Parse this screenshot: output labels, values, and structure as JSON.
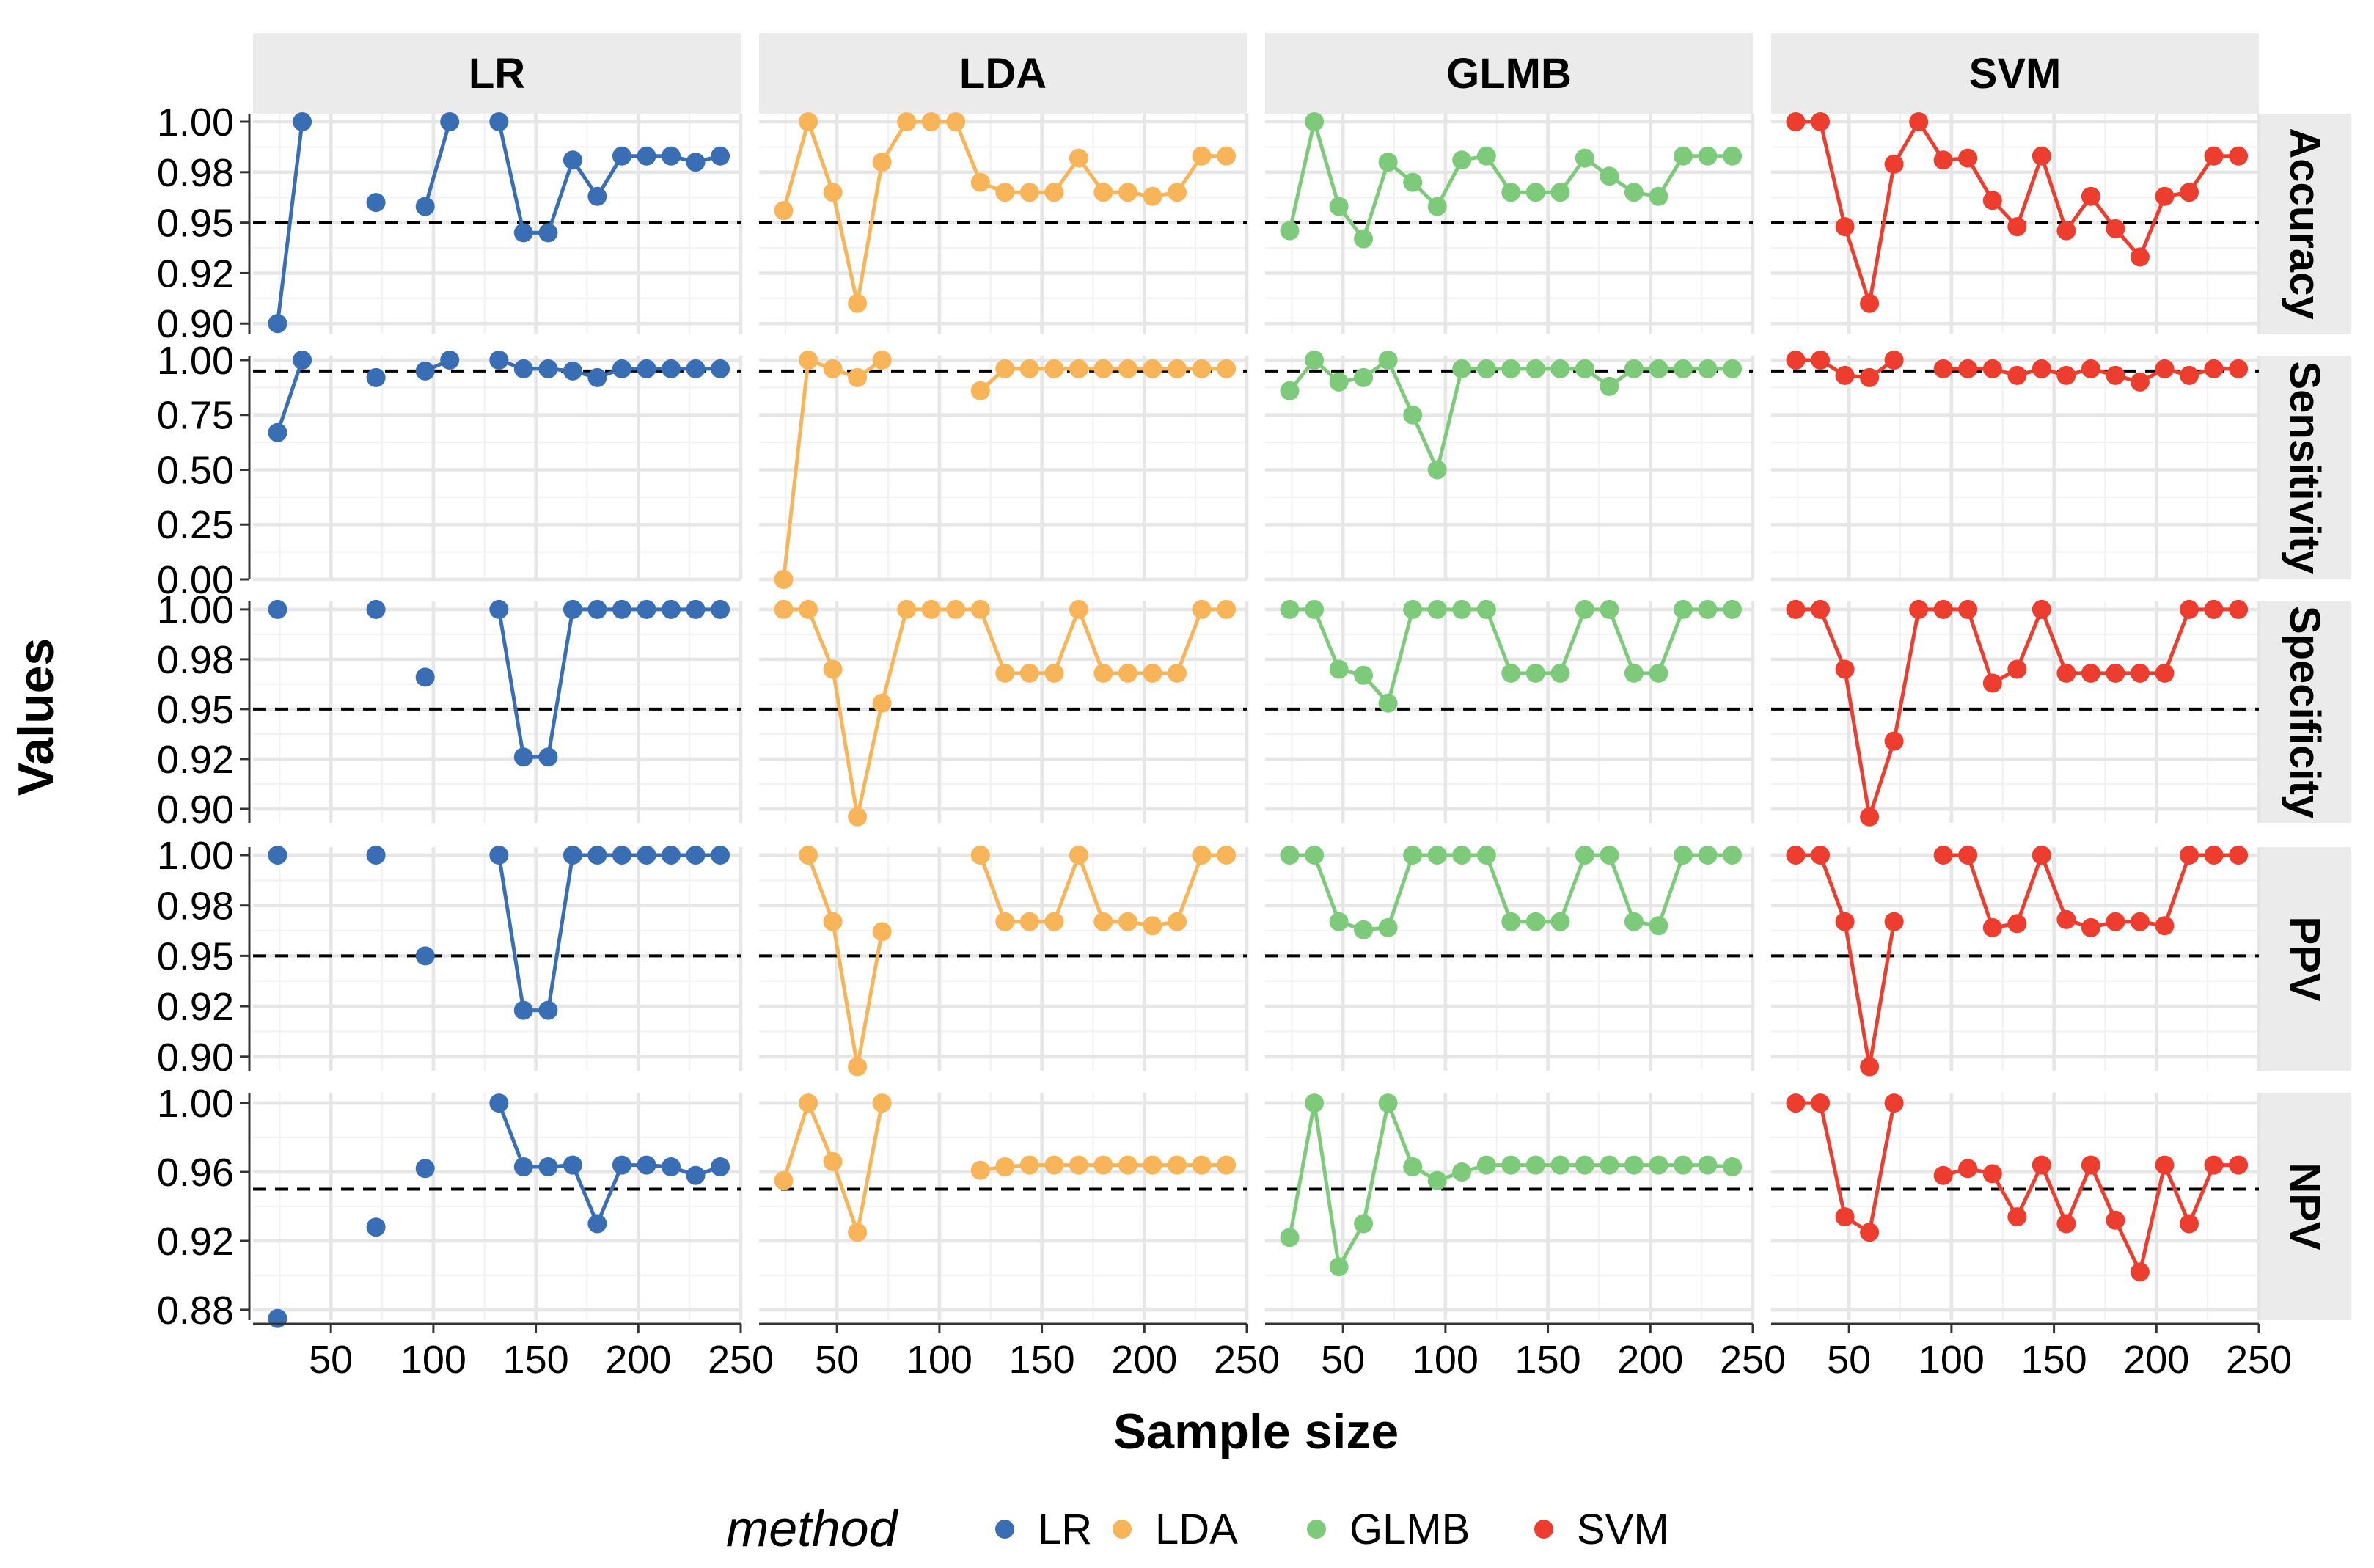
{
  "chart_data": {
    "type": "line",
    "xlabel": "Sample size",
    "ylabel": "Values",
    "x_ticks": [
      50,
      100,
      150,
      200,
      250
    ],
    "xlim": [
      12,
      250
    ],
    "reference_line": 0.95,
    "grid": true,
    "legend": {
      "title": "method",
      "position": "bottom",
      "entries": [
        {
          "name": "LR",
          "color": "#3a6eb4"
        },
        {
          "name": "LDA",
          "color": "#f8b459"
        },
        {
          "name": "GLMB",
          "color": "#7dcb7a"
        },
        {
          "name": "SVM",
          "color": "#ec3d2e"
        }
      ]
    },
    "columns": [
      "LR",
      "LDA",
      "GLMB",
      "SVM"
    ],
    "x": [
      24,
      36,
      48,
      60,
      72,
      84,
      96,
      108,
      120,
      132,
      144,
      156,
      168,
      180,
      192,
      204,
      216,
      228,
      240
    ],
    "rows": [
      {
        "metric": "Accuracy",
        "ylim": [
          0.895,
          1.004
        ],
        "y_ticks": [
          0.9,
          0.925,
          0.95,
          0.975,
          1.0
        ],
        "y_tick_labels": [
          "0.90",
          "0.92",
          "0.95",
          "0.98",
          "1.00"
        ],
        "series": {
          "LR": [
            0.9,
            1.0,
            null,
            null,
            0.96,
            null,
            0.958,
            1.0,
            null,
            1.0,
            0.945,
            0.945,
            0.981,
            0.963,
            0.983,
            0.983,
            0.983,
            0.98,
            0.983
          ],
          "LDA": [
            0.956,
            1.0,
            0.965,
            0.91,
            0.98,
            1.0,
            1.0,
            1.0,
            0.97,
            0.965,
            0.965,
            0.965,
            0.982,
            0.965,
            0.965,
            0.963,
            0.965,
            0.983,
            0.983
          ],
          "GLMB": [
            0.946,
            1.0,
            0.958,
            0.942,
            0.98,
            0.97,
            0.958,
            0.981,
            0.983,
            0.965,
            0.965,
            0.965,
            0.982,
            0.973,
            0.965,
            0.963,
            0.983,
            0.983,
            0.983
          ],
          "SVM": [
            1.0,
            1.0,
            0.948,
            0.91,
            0.979,
            1.0,
            0.981,
            0.982,
            0.961,
            0.948,
            0.983,
            0.946,
            0.963,
            0.947,
            0.933,
            0.963,
            0.965,
            0.983,
            0.983
          ]
        }
      },
      {
        "metric": "Sensitivity",
        "ylim": [
          0.0,
          1.02
        ],
        "y_ticks": [
          0.0,
          0.25,
          0.5,
          0.75,
          1.0
        ],
        "y_tick_labels": [
          "0.00",
          "0.25",
          "0.50",
          "0.75",
          "1.00"
        ],
        "series": {
          "LR": [
            0.67,
            1.0,
            null,
            null,
            0.92,
            null,
            0.95,
            1.0,
            null,
            1.0,
            0.96,
            0.96,
            0.95,
            0.92,
            0.96,
            0.96,
            0.96,
            0.96,
            0.96
          ],
          "LDA": [
            0.0,
            1.0,
            0.96,
            0.92,
            1.0,
            null,
            null,
            null,
            0.86,
            0.96,
            0.96,
            0.96,
            0.96,
            0.96,
            0.96,
            0.96,
            0.96,
            0.96,
            0.96
          ],
          "GLMB": [
            0.86,
            1.0,
            0.9,
            0.92,
            1.0,
            0.75,
            0.5,
            0.96,
            0.96,
            0.96,
            0.96,
            0.96,
            0.96,
            0.88,
            0.96,
            0.96,
            0.96,
            0.96,
            0.96
          ],
          "SVM": [
            1.0,
            1.0,
            0.93,
            0.92,
            1.0,
            null,
            0.96,
            0.96,
            0.96,
            0.93,
            0.96,
            0.93,
            0.96,
            0.93,
            0.9,
            0.96,
            0.93,
            0.96,
            0.96
          ]
        }
      },
      {
        "metric": "Specificity",
        "ylim": [
          0.893,
          1.004
        ],
        "y_ticks": [
          0.9,
          0.925,
          0.95,
          0.975,
          1.0
        ],
        "y_tick_labels": [
          "0.90",
          "0.92",
          "0.95",
          "0.98",
          "1.00"
        ],
        "series": {
          "LR": [
            1.0,
            null,
            null,
            null,
            1.0,
            null,
            0.966,
            null,
            null,
            1.0,
            0.926,
            0.926,
            1.0,
            1.0,
            1.0,
            1.0,
            1.0,
            1.0,
            1.0
          ],
          "LDA": [
            1.0,
            1.0,
            0.97,
            0.896,
            0.953,
            1.0,
            1.0,
            1.0,
            1.0,
            0.968,
            0.968,
            0.968,
            1.0,
            0.968,
            0.968,
            0.968,
            0.968,
            1.0,
            1.0
          ],
          "GLMB": [
            1.0,
            1.0,
            0.97,
            0.967,
            0.953,
            1.0,
            1.0,
            1.0,
            1.0,
            0.968,
            0.968,
            0.968,
            1.0,
            1.0,
            0.968,
            0.968,
            1.0,
            1.0,
            1.0
          ],
          "SVM": [
            1.0,
            1.0,
            0.97,
            0.896,
            0.934,
            1.0,
            1.0,
            1.0,
            0.963,
            0.97,
            1.0,
            0.968,
            0.968,
            0.968,
            0.968,
            0.968,
            1.0,
            1.0,
            1.0
          ]
        }
      },
      {
        "metric": "PPV",
        "ylim": [
          0.893,
          1.004
        ],
        "y_ticks": [
          0.9,
          0.925,
          0.95,
          0.975,
          1.0
        ],
        "y_tick_labels": [
          "0.90",
          "0.92",
          "0.95",
          "0.98",
          "1.00"
        ],
        "series": {
          "LR": [
            1.0,
            null,
            null,
            null,
            1.0,
            null,
            0.95,
            null,
            null,
            1.0,
            0.923,
            0.923,
            1.0,
            1.0,
            1.0,
            1.0,
            1.0,
            1.0,
            1.0
          ],
          "LDA": [
            null,
            1.0,
            0.967,
            0.895,
            0.962,
            null,
            null,
            null,
            1.0,
            0.967,
            0.967,
            0.967,
            1.0,
            0.967,
            0.967,
            0.965,
            0.967,
            1.0,
            1.0
          ],
          "GLMB": [
            1.0,
            1.0,
            0.967,
            0.963,
            0.964,
            1.0,
            1.0,
            1.0,
            1.0,
            0.967,
            0.967,
            0.967,
            1.0,
            1.0,
            0.967,
            0.965,
            1.0,
            1.0,
            1.0
          ],
          "SVM": [
            1.0,
            1.0,
            0.967,
            0.895,
            0.967,
            null,
            1.0,
            1.0,
            0.964,
            0.966,
            1.0,
            0.968,
            0.964,
            0.967,
            0.967,
            0.965,
            1.0,
            1.0,
            1.0
          ]
        }
      },
      {
        "metric": "NPV",
        "ylim": [
          0.874,
          1.006
        ],
        "y_ticks": [
          0.88,
          0.92,
          0.96,
          1.0
        ],
        "y_tick_labels": [
          "0.88",
          "0.92",
          "0.96",
          "1.00"
        ],
        "series": {
          "LR": [
            0.875,
            null,
            null,
            null,
            0.928,
            null,
            0.962,
            null,
            null,
            1.0,
            0.963,
            0.963,
            0.964,
            0.93,
            0.964,
            0.964,
            0.963,
            0.958,
            0.963
          ],
          "LDA": [
            0.955,
            1.0,
            0.966,
            0.925,
            1.0,
            null,
            null,
            null,
            0.961,
            0.963,
            0.964,
            0.964,
            0.964,
            0.964,
            0.964,
            0.964,
            0.964,
            0.964,
            0.964
          ],
          "GLMB": [
            0.922,
            1.0,
            0.905,
            0.93,
            1.0,
            0.963,
            0.955,
            0.96,
            0.964,
            0.964,
            0.964,
            0.964,
            0.964,
            0.964,
            0.964,
            0.964,
            0.964,
            0.964,
            0.963
          ],
          "SVM": [
            1.0,
            1.0,
            0.934,
            0.925,
            1.0,
            null,
            0.958,
            0.962,
            0.959,
            0.934,
            0.964,
            0.93,
            0.964,
            0.932,
            0.902,
            0.964,
            0.93,
            0.964,
            0.964
          ]
        }
      }
    ]
  }
}
